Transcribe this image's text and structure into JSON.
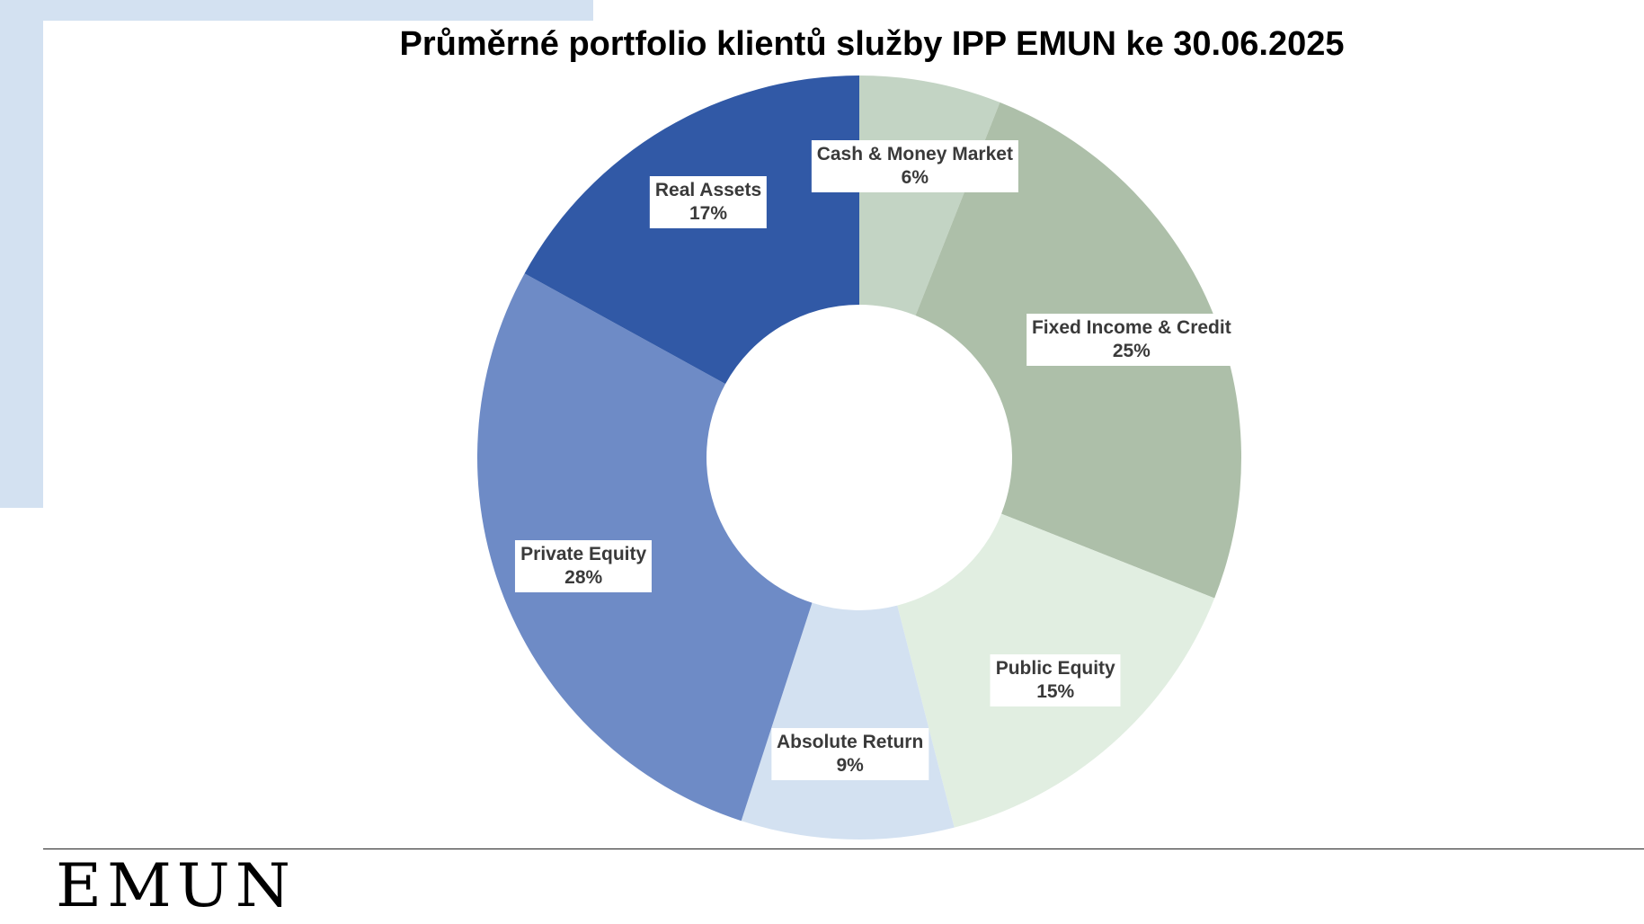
{
  "chart_data": {
    "type": "pie",
    "variant": "donut",
    "title": "Průměrné portfolio klientů služby IPP EMUN ke 30.06.2025",
    "slices": [
      {
        "label": "Cash & Money Market",
        "value": 6,
        "value_label": "6%",
        "color": "#c3d4c4"
      },
      {
        "label": "Fixed Income & Credit",
        "value": 25,
        "value_label": "25%",
        "color": "#adbfa9"
      },
      {
        "label": "Public Equity",
        "value": 15,
        "value_label": "15%",
        "color": "#e1eee1"
      },
      {
        "label": "Absolute Return",
        "value": 9,
        "value_label": "9%",
        "color": "#d3e1f1"
      },
      {
        "label": "Private Equity",
        "value": 28,
        "value_label": "28%",
        "color": "#6e8bc6"
      },
      {
        "label": "Real Assets",
        "value": 17,
        "value_label": "17%",
        "color": "#3159a6"
      }
    ],
    "legend": "none"
  },
  "branding": {
    "logo_text": "EMUN",
    "accent_color": "#d3e1f1"
  }
}
